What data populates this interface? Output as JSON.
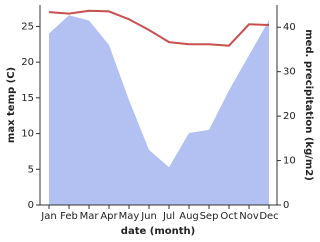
{
  "chart_data": {
    "type": "combo",
    "x_label": "date (month)",
    "y_label": "max temp (C)",
    "y2_label": "med. precipitation (kg/m2)",
    "categories": [
      "Jan",
      "Feb",
      "Mar",
      "Apr",
      "May",
      "Jun",
      "Jul",
      "Aug",
      "Sep",
      "Oct",
      "Nov",
      "Dec"
    ],
    "series": [
      {
        "name": "med. precipitation",
        "type": "area",
        "axis": "y2",
        "color": "#b3c1f2",
        "values": [
          38.6,
          42.7,
          41.5,
          36,
          23.6,
          12.4,
          8.5,
          16.2,
          16.9,
          25.8,
          33.7,
          41.6
        ]
      },
      {
        "name": "max temp",
        "type": "line",
        "axis": "y",
        "color": "#c8504f",
        "values": [
          27.0,
          26.8,
          27.2,
          27.1,
          26.0,
          24.5,
          22.8,
          22.5,
          22.5,
          22.3,
          25.3,
          25.2
        ]
      }
    ],
    "ylim": [
      0,
      28
    ],
    "yticks": [
      0,
      5,
      10,
      15,
      20,
      25
    ],
    "y2lim": [
      0,
      45
    ],
    "y2ticks": [
      0,
      10,
      20,
      30,
      40
    ]
  }
}
